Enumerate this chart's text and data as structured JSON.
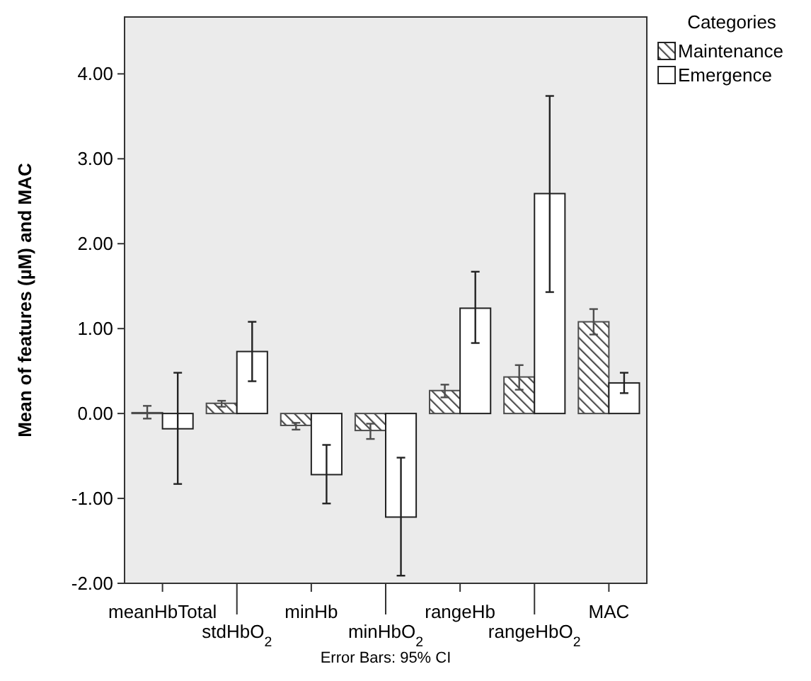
{
  "chart_data": {
    "type": "bar",
    "ylabel": "Mean of features (µM) and MAC",
    "legend_title": "Categories",
    "legend": "top right",
    "grid": false,
    "categories": [
      "meanHbTotal",
      "stdHbO$_{2}$",
      "minHb",
      "minHbO$_{2}$",
      "rangeHb",
      "rangeHbO$_{2}$",
      "MAC"
    ],
    "series": [
      {
        "name": "Maintenance",
        "color": "#4d4d4d",
        "values": [
          0.01,
          0.12,
          -0.14,
          -0.2,
          0.27,
          0.43,
          1.08
        ],
        "errors": [
          [
            -0.06,
            0.09
          ],
          [
            0.08,
            0.15
          ],
          [
            -0.19,
            -0.11
          ],
          [
            -0.3,
            -0.12
          ],
          [
            0.19,
            0.34
          ],
          [
            0.28,
            0.57
          ],
          [
            0.93,
            1.23
          ]
        ]
      },
      {
        "name": "Emergence",
        "color": "#ffffff",
        "values": [
          -0.18,
          0.73,
          -0.72,
          -1.22,
          1.24,
          2.59,
          0.36
        ],
        "errors": [
          [
            -0.83,
            0.48
          ],
          [
            0.38,
            1.08
          ],
          [
            -1.06,
            -0.37
          ],
          [
            -1.91,
            -0.52
          ],
          [
            0.83,
            1.67
          ],
          [
            1.43,
            3.74
          ],
          [
            0.24,
            0.48
          ]
        ]
      }
    ],
    "ylim": [
      -2,
      4.67
    ],
    "yticks": [
      {
        "value": -2,
        "label": "-2.00"
      },
      {
        "value": -1,
        "label": "-1.00"
      },
      {
        "value": 0,
        "label": "0.00"
      },
      {
        "value": 1,
        "label": "1.00"
      },
      {
        "value": 2,
        "label": "2.00"
      },
      {
        "value": 3,
        "label": "3.00"
      },
      {
        "value": 4,
        "label": "4.00"
      }
    ],
    "annotations": [
      "Error Bars: 95% CI"
    ]
  }
}
